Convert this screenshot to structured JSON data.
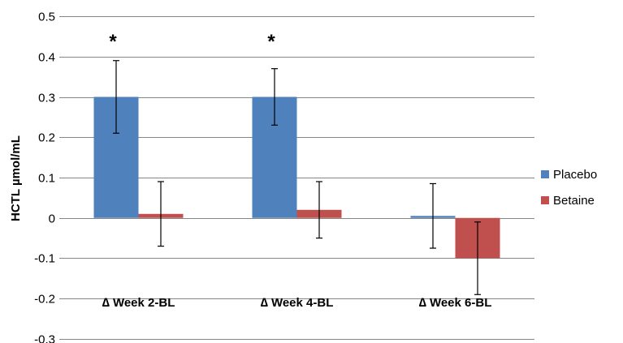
{
  "chart_data": {
    "type": "bar",
    "title": "",
    "xlabel": "",
    "ylabel": "HCTL µmol/mL",
    "ylim": [
      -0.3,
      0.5
    ],
    "yticks": [
      -0.3,
      -0.2,
      -0.1,
      0,
      0.1,
      0.2,
      0.3,
      0.4,
      0.5
    ],
    "ytick_labels": [
      "-0.3",
      "-0.2",
      "-0.1",
      "0",
      "0.1",
      "0.2",
      "0.3",
      "0.4",
      "0.5"
    ],
    "grid": true,
    "legend_position": "right",
    "categories": [
      "∆ Week 2-BL",
      "∆ Week 4-BL",
      "∆ Week 6-BL"
    ],
    "series": [
      {
        "name": "Placebo",
        "color": "#4f81bd",
        "values": [
          0.3,
          0.3,
          0.005
        ],
        "error_low": [
          0.21,
          0.23,
          -0.075
        ],
        "error_high": [
          0.39,
          0.37,
          0.085
        ]
      },
      {
        "name": "Betaine",
        "color": "#c0504d",
        "values": [
          0.01,
          0.02,
          -0.1
        ],
        "error_low": [
          -0.07,
          -0.05,
          -0.19
        ],
        "error_high": [
          0.09,
          0.09,
          -0.01
        ]
      }
    ],
    "annotations": [
      {
        "text": "*",
        "category_index": 0,
        "y": 0.45
      },
      {
        "text": "*",
        "category_index": 1,
        "y": 0.45
      }
    ]
  }
}
